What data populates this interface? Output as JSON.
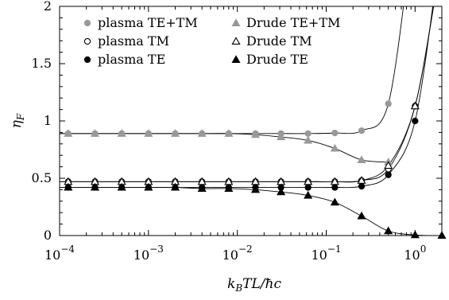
{
  "chart_data": {
    "type": "scatter",
    "xlabel": "k_B TL/ħc",
    "ylabel": "η_F",
    "xscale": "log",
    "xlim": [
      0.0001,
      2
    ],
    "ylim": [
      0,
      2
    ],
    "x_ticks": [
      {
        "value": 0.0001,
        "base": "10",
        "exp": "−4"
      },
      {
        "value": 0.001,
        "base": "10",
        "exp": "−3"
      },
      {
        "value": 0.01,
        "base": "10",
        "exp": "−2"
      },
      {
        "value": 0.1,
        "base": "10",
        "exp": "−1"
      },
      {
        "value": 1,
        "base": "10",
        "exp": "0"
      }
    ],
    "y_ticks": [
      {
        "value": 0,
        "label": "0"
      },
      {
        "value": 0.5,
        "label": "0.5"
      },
      {
        "value": 1,
        "label": "1"
      },
      {
        "value": 1.5,
        "label": "1.5"
      },
      {
        "value": 2,
        "label": "2"
      }
    ],
    "grid": false,
    "legend_position": "top",
    "series": [
      {
        "name": "plasma TE+TM",
        "marker": "circle-filled",
        "color": "#999999",
        "x": [
          0.000125,
          0.00025,
          0.0005,
          0.001,
          0.002,
          0.004,
          0.008,
          0.016,
          0.031,
          0.0625,
          0.125,
          0.25,
          0.5
        ],
        "y": [
          0.89,
          0.89,
          0.89,
          0.89,
          0.89,
          0.89,
          0.89,
          0.89,
          0.89,
          0.89,
          0.895,
          0.915,
          1.15
        ]
      },
      {
        "name": "plasma TM",
        "marker": "circle-open",
        "color": "#000000",
        "x": [
          0.000125,
          0.00025,
          0.0005,
          0.001,
          0.002,
          0.004,
          0.008,
          0.016,
          0.031,
          0.0625,
          0.125,
          0.25,
          0.5,
          1.0
        ],
        "y": [
          0.47,
          0.47,
          0.47,
          0.47,
          0.47,
          0.47,
          0.47,
          0.47,
          0.47,
          0.47,
          0.47,
          0.48,
          0.58,
          1.13
        ]
      },
      {
        "name": "plasma TE",
        "marker": "circle-filled",
        "color": "#000000",
        "x": [
          0.000125,
          0.00025,
          0.0005,
          0.001,
          0.002,
          0.004,
          0.008,
          0.016,
          0.031,
          0.0625,
          0.125,
          0.25,
          0.5,
          1.0
        ],
        "y": [
          0.42,
          0.42,
          0.42,
          0.42,
          0.42,
          0.42,
          0.42,
          0.42,
          0.42,
          0.42,
          0.42,
          0.43,
          0.53,
          1.0
        ]
      },
      {
        "name": "Drude TE+TM",
        "marker": "triangle-filled",
        "color": "#999999",
        "x": [
          0.000125,
          0.00025,
          0.0005,
          0.001,
          0.002,
          0.004,
          0.008,
          0.016,
          0.031,
          0.0625,
          0.125,
          0.25,
          0.5
        ],
        "y": [
          0.89,
          0.89,
          0.89,
          0.89,
          0.89,
          0.89,
          0.89,
          0.88,
          0.86,
          0.83,
          0.76,
          0.66,
          0.64
        ]
      },
      {
        "name": "Drude TM",
        "marker": "triangle-open",
        "color": "#000000",
        "x": [
          0.000125,
          0.00025,
          0.0005,
          0.001,
          0.002,
          0.004,
          0.008,
          0.016,
          0.031,
          0.0625,
          0.125,
          0.25,
          0.5,
          1.0
        ],
        "y": [
          0.47,
          0.47,
          0.47,
          0.47,
          0.47,
          0.47,
          0.47,
          0.47,
          0.47,
          0.47,
          0.47,
          0.48,
          0.61,
          1.13
        ]
      },
      {
        "name": "Drude TE",
        "marker": "triangle-filled",
        "color": "#000000",
        "x": [
          0.000125,
          0.00025,
          0.0005,
          0.001,
          0.002,
          0.004,
          0.008,
          0.016,
          0.031,
          0.0625,
          0.125,
          0.25,
          0.5,
          1.0,
          2.0
        ],
        "y": [
          0.42,
          0.42,
          0.42,
          0.42,
          0.42,
          0.41,
          0.41,
          0.4,
          0.38,
          0.35,
          0.29,
          0.17,
          0.04,
          0.005,
          0.0
        ]
      }
    ]
  }
}
